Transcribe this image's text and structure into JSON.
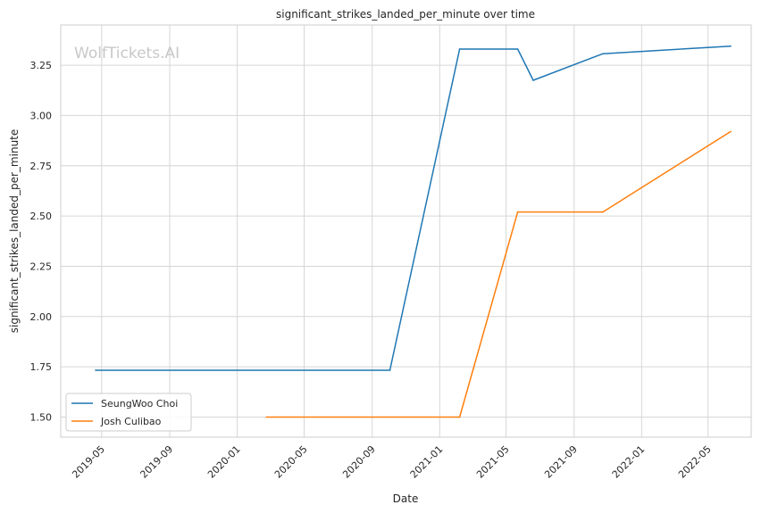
{
  "watermark": "WolfTickets.AI",
  "chart_data": {
    "type": "line",
    "title": "significant_strikes_landed_per_minute over time",
    "xlabel": "Date",
    "ylabel": "significant_strikes_landed_per_minute",
    "x_axis_type": "date",
    "xlim": [
      "2019-02-16",
      "2022-07-18"
    ],
    "ylim": [
      1.4,
      3.45
    ],
    "x_ticks": [
      "2019-05",
      "2019-09",
      "2020-01",
      "2020-05",
      "2020-09",
      "2021-01",
      "2021-05",
      "2021-09",
      "2022-01",
      "2022-05"
    ],
    "y_ticks": [
      1.5,
      1.75,
      2.0,
      2.25,
      2.5,
      2.75,
      3.0,
      3.25
    ],
    "grid": true,
    "legend_position": "lower-left",
    "series": [
      {
        "name": "SeungWoo Choi",
        "color": "#1f77b4",
        "points": [
          {
            "x": "2019-04-20",
            "y": 1.733
          },
          {
            "x": "2020-10-03",
            "y": 1.733
          },
          {
            "x": "2021-02-06",
            "y": 3.33
          },
          {
            "x": "2021-05-22",
            "y": 3.33
          },
          {
            "x": "2021-06-19",
            "y": 3.175
          },
          {
            "x": "2021-10-23",
            "y": 3.307
          },
          {
            "x": "2022-06-11",
            "y": 3.345
          }
        ]
      },
      {
        "name": "Josh Culibao",
        "color": "#ff7f0e",
        "points": [
          {
            "x": "2020-02-23",
            "y": 1.5
          },
          {
            "x": "2021-02-06",
            "y": 1.5
          },
          {
            "x": "2021-05-22",
            "y": 2.52
          },
          {
            "x": "2021-10-23",
            "y": 2.52
          },
          {
            "x": "2022-06-11",
            "y": 2.92
          }
        ]
      }
    ]
  }
}
